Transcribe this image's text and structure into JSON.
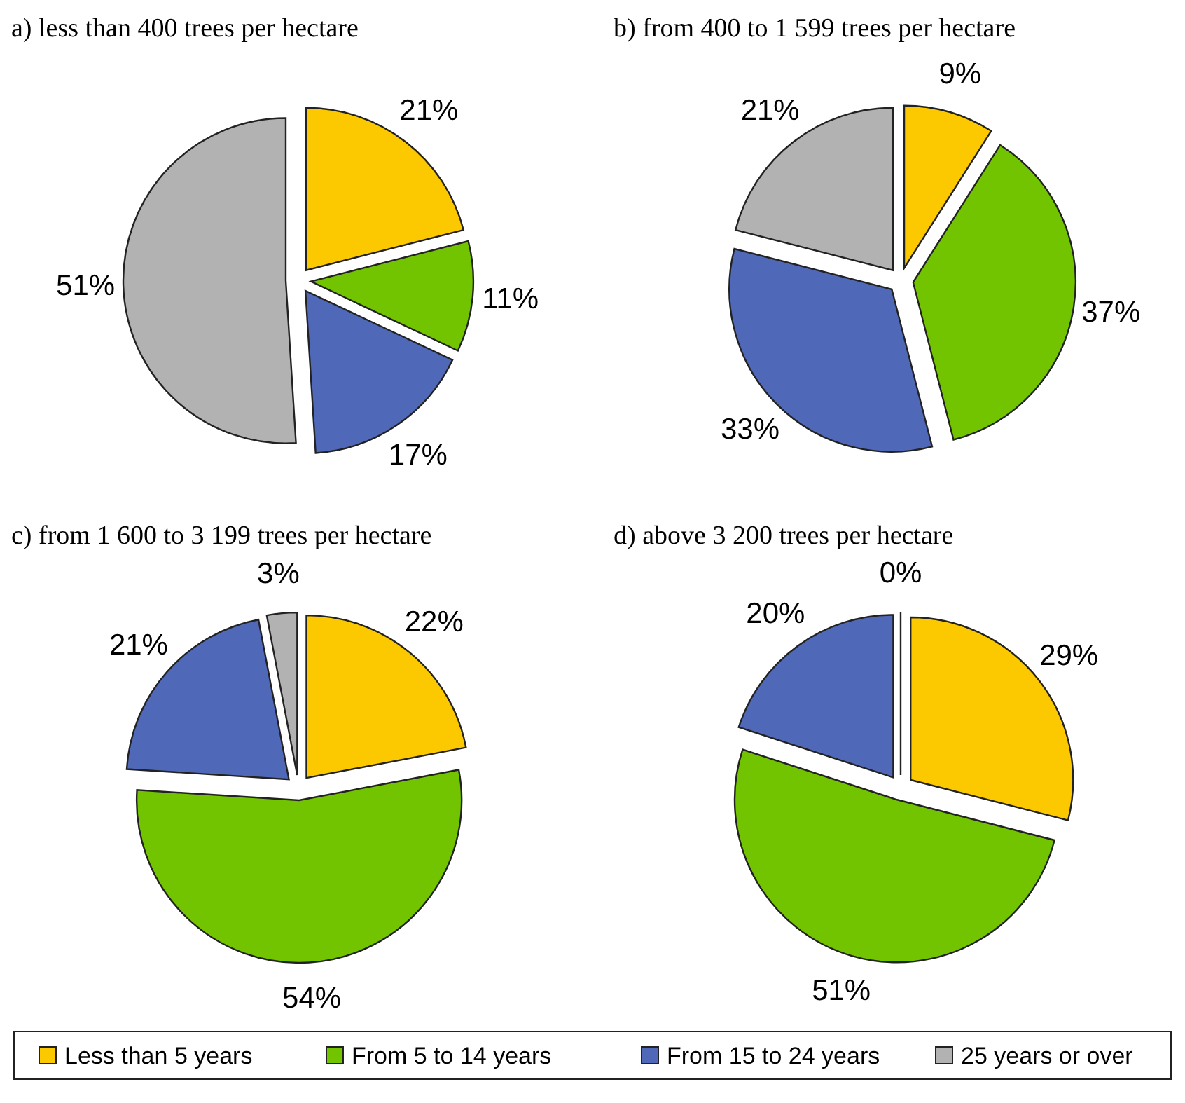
{
  "chart_data": [
    {
      "type": "pie",
      "title": "a) less than 400 trees per hectare",
      "categories": [
        "Less than 5 years",
        "From 5 to 14 years",
        "From 15 to 24 years",
        "25 years or over"
      ],
      "values": [
        21,
        11,
        17,
        51
      ],
      "value_labels": [
        "21%",
        "11%",
        "17%",
        "51%"
      ],
      "colors": [
        "#fcc800",
        "#73c400",
        "#5068b8",
        "#b2b2b2"
      ],
      "legend": "bottom"
    },
    {
      "type": "pie",
      "title": "b) from 400 to 1 599 trees per hectare",
      "categories": [
        null,
        null,
        null,
        null
      ],
      "values": [
        9,
        37,
        33,
        21
      ],
      "value_labels": [
        "9%",
        "37%",
        "33%",
        "21%"
      ],
      "colors": [
        "#fcc800",
        "#73c400",
        "#5068b8",
        "#b2b2b2"
      ]
    },
    {
      "type": "pie",
      "title": "c) from 1 600 to 3 199 trees per hectare",
      "categories": [
        null,
        null,
        null,
        null
      ],
      "values": [
        22,
        54,
        21,
        3
      ],
      "value_labels": [
        "22%",
        "54%",
        "21%",
        "3%"
      ],
      "colors": [
        "#fcc800",
        "#73c400",
        "#5068b8",
        "#b2b2b2"
      ]
    },
    {
      "type": "pie",
      "title": "d) above 3 200 trees per hectare",
      "categories": [
        null,
        null,
        null,
        null
      ],
      "values": [
        29,
        51,
        20,
        0
      ],
      "value_labels": [
        "29%",
        "51%",
        "20%",
        "0%"
      ],
      "colors": [
        "#fcc800",
        "#73c400",
        "#5068b8",
        "#b2b2b2"
      ]
    }
  ]
}
